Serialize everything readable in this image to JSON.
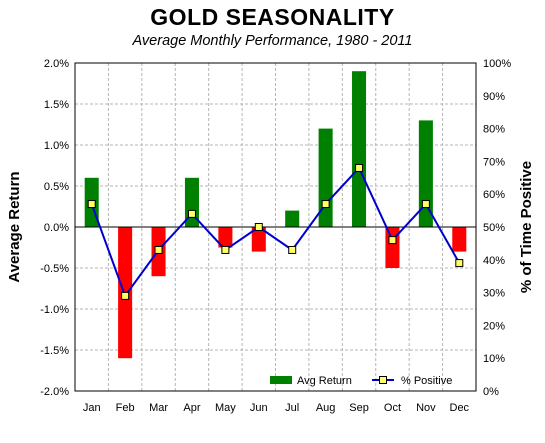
{
  "chart_data": {
    "type": "bar",
    "title": "GOLD SEASONALITY",
    "subtitle": "Average Monthly Performance, 1980 - 2011",
    "categories": [
      "Jan",
      "Feb",
      "Mar",
      "Apr",
      "May",
      "Jun",
      "Jul",
      "Aug",
      "Sep",
      "Oct",
      "Nov",
      "Dec"
    ],
    "ylabel": "Average Return",
    "y2label": "% of Time Positive",
    "ylim": [
      -2.0,
      2.0
    ],
    "y2lim": [
      0,
      100
    ],
    "yticks": [
      "2.0%",
      "1.5%",
      "1.0%",
      "0.5%",
      "0.0%",
      "-0.5%",
      "-1.0%",
      "-1.5%",
      "-2.0%"
    ],
    "y2ticks": [
      "100%",
      "90%",
      "80%",
      "70%",
      "60%",
      "50%",
      "40%",
      "30%",
      "20%",
      "10%",
      "0%"
    ],
    "series": [
      {
        "name": "Avg Return",
        "kind": "bar",
        "positive_color": "#008000",
        "negative_color": "#ff0000",
        "values": [
          0.6,
          -1.6,
          -0.6,
          0.6,
          -0.25,
          -0.3,
          0.2,
          1.2,
          1.9,
          -0.5,
          1.3,
          -0.3
        ]
      },
      {
        "name": "% Positive",
        "kind": "line",
        "axis": "right",
        "line_color": "#0000cc",
        "marker_color": "#ffff66",
        "values": [
          57,
          29,
          43,
          54,
          43,
          50,
          43,
          57,
          68,
          46,
          57,
          39
        ]
      }
    ],
    "grid": true,
    "legend_position": "bottom-right"
  }
}
